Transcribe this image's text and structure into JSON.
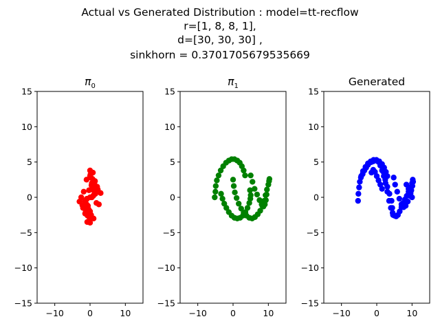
{
  "suptitle_lines": [
    "Actual vs Generated Distribution : model=tt-recflow",
    "r=[1, 8, 8, 1],",
    "d=[30, 30, 30] ,",
    "sinkhorn = 0.3701705679535669"
  ],
  "chart_data": [
    {
      "type": "scatter",
      "title_base": "π",
      "title_sub": "0",
      "xlim": [
        -15,
        15
      ],
      "ylim": [
        -15,
        15
      ],
      "xticks": [
        -10,
        0,
        10
      ],
      "yticks": [
        -15,
        -10,
        -5,
        0,
        5,
        10,
        15
      ],
      "grid": false,
      "color": "#ff0000",
      "series": [
        {
          "x": [
            0,
            1,
            -1,
            0.5,
            -0.5,
            1.5,
            -1.5,
            2,
            -2,
            0,
            1,
            -1,
            0.3,
            -0.3,
            2.5,
            -2.5,
            0.8,
            -0.8,
            1.2,
            -1.2,
            0,
            0.6,
            -0.6,
            1.8,
            -1.8,
            0.2,
            -0.2,
            1,
            -1,
            3,
            -3,
            0,
            0.4,
            -0.4,
            1.4,
            -1.4,
            2.2,
            -2.2,
            0.9,
            -0.9,
            0.1,
            -0.1,
            0.7,
            -0.7,
            1.6,
            -1.6,
            0,
            1,
            -1,
            0.5
          ],
          "y": [
            0,
            1,
            -1,
            2,
            -2,
            0.5,
            -0.5,
            1.5,
            -1.5,
            3,
            -3,
            2.5,
            -2.5,
            1,
            -1,
            0,
            3.5,
            -3.5,
            2,
            -2,
            3.8,
            1.2,
            -1.2,
            -0.8,
            0.8,
            2.8,
            -2.8,
            0.3,
            -0.3,
            0.6,
            -0.6,
            -3.6,
            1.7,
            -1.7,
            2.3,
            -2.3,
            1.1,
            -1.1,
            0.2,
            -0.2,
            3.2,
            -3.2,
            2.6,
            -2.6,
            1.4,
            -1.4,
            -2,
            2.4,
            -2.4,
            0
          ]
        }
      ]
    },
    {
      "type": "scatter",
      "title_base": "π",
      "title_sub": "1",
      "xlim": [
        -15,
        15
      ],
      "ylim": [
        -15,
        15
      ],
      "xticks": [
        -10,
        0,
        10
      ],
      "yticks": [
        -15,
        -10,
        -5,
        0,
        5,
        10,
        15
      ],
      "grid": false,
      "color": "#008000",
      "series": [
        {
          "x": [
            -5.2,
            -5.0,
            -4.9,
            -4.6,
            -4.1,
            -3.5,
            -2.8,
            -2.0,
            -1.2,
            -0.4,
            0.4,
            1.2,
            1.9,
            2.5,
            3.0,
            3.4,
            4.8,
            5.0,
            4.9,
            4.6,
            4.1,
            3.5,
            2.8,
            2.0,
            1.2,
            0.4,
            -0.4,
            -1.2,
            -1.9,
            -2.5,
            -3.0,
            -3.4,
            0.0,
            0.2,
            0.5,
            1.0,
            1.6,
            2.3,
            3.0,
            3.8,
            4.6,
            5.4,
            6.2,
            7.0,
            7.7,
            8.3,
            8.8,
            9.2,
            9.6,
            10.0,
            10.2,
            10.3,
            5.0,
            5.5,
            6.1,
            6.8,
            7.5,
            8.1,
            8.6,
            9.0,
            9.3,
            9.5
          ],
          "y": [
            0.0,
            0.8,
            1.6,
            2.4,
            3.1,
            3.8,
            4.4,
            4.9,
            5.2,
            5.4,
            5.4,
            5.2,
            4.9,
            4.4,
            3.8,
            3.1,
            1.0,
            0.3,
            -0.2,
            -0.8,
            -1.5,
            -2.1,
            -2.6,
            -2.9,
            -3.0,
            -2.9,
            -2.6,
            -2.1,
            -1.5,
            -0.9,
            -0.2,
            0.5,
            2.5,
            1.6,
            0.7,
            -0.1,
            -0.9,
            -1.6,
            -2.2,
            -2.6,
            -2.9,
            -3.0,
            -2.8,
            -2.4,
            -1.9,
            -1.2,
            -0.5,
            0.3,
            1.1,
            1.8,
            2.3,
            2.6,
            3.1,
            2.2,
            1.2,
            0.4,
            -0.4,
            -1.0,
            -1.3,
            -1.0,
            -0.4,
            0.4
          ]
        }
      ]
    },
    {
      "type": "scatter",
      "title_base": "Generated",
      "title_sub": "",
      "xlim": [
        -15,
        15
      ],
      "ylim": [
        -15,
        15
      ],
      "xticks": [
        -10,
        0,
        10
      ],
      "yticks": [
        -15,
        -10,
        -5,
        0,
        5,
        10,
        15
      ],
      "grid": false,
      "color": "#0000ff",
      "series": [
        {
          "x": [
            -5.3,
            -5.2,
            -5.0,
            -4.8,
            -4.4,
            -3.9,
            -3.2,
            -2.5,
            -1.7,
            -0.9,
            -0.1,
            0.7,
            1.5,
            2.1,
            2.6,
            3.0,
            -4.5,
            -4.0,
            -3.5,
            -3.0,
            -2.5,
            -2.0,
            -1.5,
            -1.0,
            -0.5,
            0.0,
            0.5,
            1.0,
            1.5,
            2.0,
            2.5,
            3.0,
            3.5,
            4.0,
            4.5,
            5.0,
            5.5,
            6.0,
            6.5,
            7.0,
            7.5,
            8.0,
            8.5,
            9.0,
            9.5,
            10.0,
            10.2,
            10.3,
            4.8,
            5.2,
            5.8,
            6.4,
            7.0,
            7.6,
            8.2,
            8.8,
            9.4,
            9.8,
            10.1,
            2.0,
            2.4,
            3.0,
            3.6,
            4.2,
            4.4,
            4.6,
            8.4,
            9.0,
            9.6,
            10.0,
            -1.5,
            -1.0,
            -0.5,
            0.0,
            0.5,
            1.0,
            1.5
          ],
          "y": [
            -0.5,
            0.5,
            1.4,
            2.2,
            3.0,
            3.7,
            4.3,
            4.8,
            5.1,
            5.3,
            5.3,
            5.1,
            4.7,
            4.2,
            3.6,
            3.0,
            2.8,
            3.3,
            3.8,
            4.2,
            4.6,
            4.9,
            5.0,
            5.1,
            5.2,
            5.2,
            5.0,
            4.5,
            3.8,
            3.0,
            2.0,
            0.8,
            -0.5,
            -1.5,
            -2.2,
            -2.6,
            -2.7,
            -2.5,
            -2.0,
            -1.4,
            -0.8,
            -0.3,
            0.2,
            0.8,
            1.4,
            2.0,
            2.5,
            2.2,
            2.8,
            1.8,
            0.8,
            -0.2,
            -1.0,
            -1.4,
            -1.2,
            -0.6,
            0.2,
            1.0,
            1.6,
            3.5,
            2.5,
            1.5,
            0.5,
            -0.5,
            -1.5,
            -2.5,
            1.8,
            1.2,
            0.6,
            0.0,
            3.5,
            3.9,
            3.6,
            3.0,
            2.4,
            1.8,
            1.2
          ]
        }
      ]
    }
  ]
}
